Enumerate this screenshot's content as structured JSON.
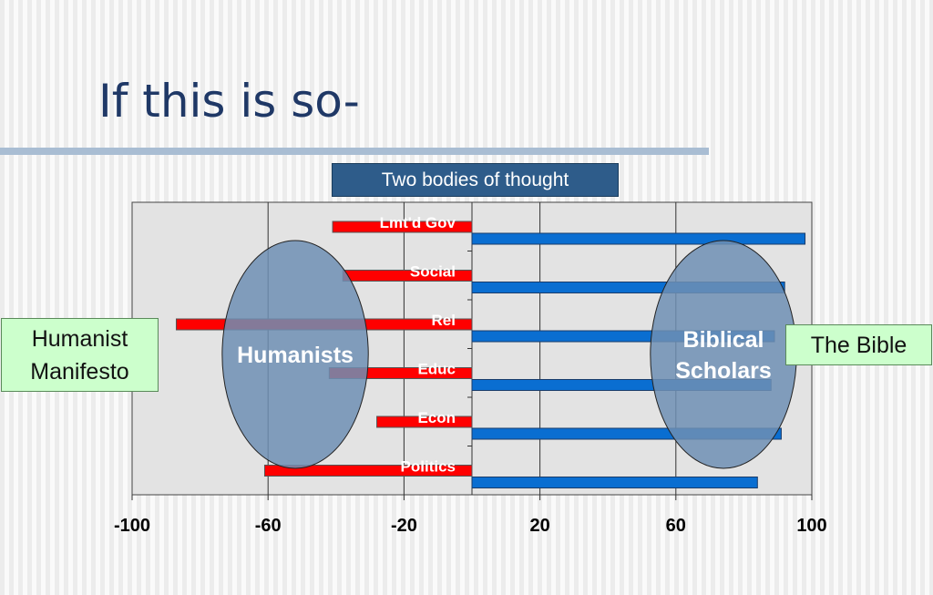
{
  "slide": {
    "title": "If this is so-",
    "banner": "Two bodies of thought",
    "left_box": [
      "Humanist",
      "Manifesto"
    ],
    "right_box": "The Bible"
  },
  "colors": {
    "humanist_bar": "#ff0000",
    "biblical_bar": "#0a6ed1",
    "ellipse": "#6f8fb4",
    "plot_bg": "#e3e3e3"
  },
  "chart_data": {
    "type": "bar",
    "orientation": "horizontal",
    "categories": [
      "Lmt'd Gov",
      "Social",
      "Rel",
      "Educ",
      "Econ",
      "Politics"
    ],
    "series": [
      {
        "color": "#ff0000",
        "values": [
          -41,
          -38,
          -87,
          -42,
          -28,
          -61
        ]
      },
      {
        "color": "#0a6ed1",
        "values": [
          98,
          92,
          89,
          88,
          91,
          84
        ]
      }
    ],
    "xlim": [
      -100,
      100
    ],
    "xticks": [
      "-100",
      "-60",
      "-20",
      "20",
      "60",
      "100"
    ],
    "xtick_values": [
      -100,
      -60,
      -20,
      20,
      60,
      100
    ],
    "gridlines": [
      -60,
      -20,
      20,
      60
    ],
    "grid": true,
    "legend": "none",
    "annotations": [
      {
        "text": "Humanists",
        "cx": -52,
        "rx": 21.5
      },
      {
        "text": [
          "Biblical",
          "Scholars"
        ],
        "cx": 74,
        "rx": 21.5
      }
    ]
  }
}
